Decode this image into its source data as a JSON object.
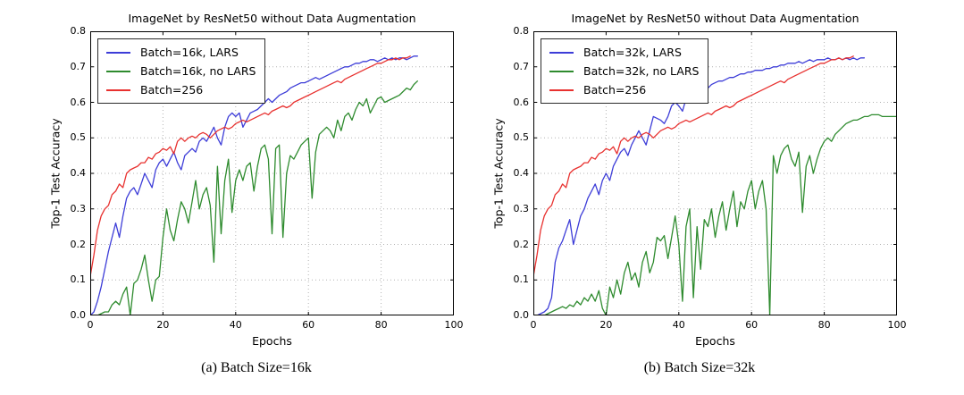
{
  "chart_data": [
    {
      "id": "a",
      "type": "line",
      "title": "ImageNet by ResNet50 without Data Augmentation",
      "caption": "(a) Batch Size=16k",
      "xlabel": "Epochs",
      "ylabel": "Top-1 Test Accuracy",
      "xlim": [
        0,
        100
      ],
      "ylim": [
        0.0,
        0.8
      ],
      "xticks": [
        0,
        20,
        40,
        60,
        80,
        100
      ],
      "yticks": [
        0.0,
        0.1,
        0.2,
        0.3,
        0.4,
        0.5,
        0.6,
        0.7,
        0.8
      ],
      "ytick_labels": [
        "0.0",
        "0.1",
        "0.2",
        "0.3",
        "0.4",
        "0.5",
        "0.6",
        "0.7",
        "0.8"
      ],
      "grid": "dotted",
      "grid_color": "#b3b3b3",
      "legend_position": "upper-left",
      "series": [
        {
          "name": "Batch=16k, LARS",
          "color": "#3d3dd8",
          "epochs_start": 0,
          "epochs_step": 1,
          "values": [
            0.0,
            0.01,
            0.04,
            0.08,
            0.13,
            0.18,
            0.22,
            0.26,
            0.22,
            0.28,
            0.33,
            0.35,
            0.36,
            0.34,
            0.37,
            0.4,
            0.38,
            0.36,
            0.41,
            0.43,
            0.44,
            0.42,
            0.44,
            0.46,
            0.43,
            0.41,
            0.45,
            0.46,
            0.47,
            0.46,
            0.49,
            0.5,
            0.49,
            0.51,
            0.53,
            0.5,
            0.48,
            0.53,
            0.56,
            0.57,
            0.56,
            0.57,
            0.53,
            0.55,
            0.57,
            0.575,
            0.58,
            0.59,
            0.6,
            0.61,
            0.6,
            0.61,
            0.62,
            0.625,
            0.63,
            0.64,
            0.645,
            0.65,
            0.655,
            0.655,
            0.66,
            0.665,
            0.67,
            0.665,
            0.67,
            0.675,
            0.68,
            0.685,
            0.69,
            0.695,
            0.7,
            0.7,
            0.705,
            0.71,
            0.71,
            0.715,
            0.715,
            0.72,
            0.72,
            0.715,
            0.72,
            0.725,
            0.72,
            0.725,
            0.72,
            0.725,
            0.725,
            0.72,
            0.725,
            0.73,
            0.73
          ]
        },
        {
          "name": "Batch=16k, no LARS",
          "color": "#2e8b2e",
          "epochs_start": 0,
          "epochs_step": 1,
          "values": [
            0.0,
            0.0,
            0.0,
            0.005,
            0.01,
            0.01,
            0.03,
            0.04,
            0.03,
            0.06,
            0.08,
            0.0,
            0.09,
            0.1,
            0.13,
            0.17,
            0.1,
            0.04,
            0.1,
            0.11,
            0.22,
            0.3,
            0.24,
            0.21,
            0.27,
            0.32,
            0.3,
            0.26,
            0.32,
            0.38,
            0.3,
            0.34,
            0.36,
            0.31,
            0.15,
            0.42,
            0.23,
            0.38,
            0.44,
            0.29,
            0.38,
            0.41,
            0.38,
            0.42,
            0.43,
            0.35,
            0.42,
            0.47,
            0.48,
            0.44,
            0.23,
            0.47,
            0.48,
            0.22,
            0.4,
            0.45,
            0.44,
            0.46,
            0.48,
            0.49,
            0.5,
            0.33,
            0.46,
            0.51,
            0.52,
            0.53,
            0.52,
            0.5,
            0.55,
            0.52,
            0.56,
            0.57,
            0.55,
            0.58,
            0.6,
            0.59,
            0.61,
            0.57,
            0.59,
            0.61,
            0.615,
            0.6,
            0.605,
            0.61,
            0.615,
            0.62,
            0.63,
            0.64,
            0.635,
            0.65,
            0.66
          ]
        },
        {
          "name": "Batch=256",
          "color": "#e8312f",
          "epochs_start": 0,
          "epochs_step": 1,
          "values": [
            0.11,
            0.17,
            0.24,
            0.28,
            0.3,
            0.31,
            0.34,
            0.35,
            0.37,
            0.36,
            0.4,
            0.41,
            0.415,
            0.42,
            0.43,
            0.43,
            0.445,
            0.44,
            0.455,
            0.46,
            0.47,
            0.465,
            0.475,
            0.455,
            0.49,
            0.5,
            0.49,
            0.5,
            0.505,
            0.5,
            0.51,
            0.515,
            0.51,
            0.5,
            0.51,
            0.52,
            0.525,
            0.53,
            0.525,
            0.53,
            0.54,
            0.545,
            0.55,
            0.545,
            0.55,
            0.555,
            0.56,
            0.565,
            0.57,
            0.565,
            0.575,
            0.58,
            0.585,
            0.59,
            0.585,
            0.59,
            0.6,
            0.605,
            0.61,
            0.615,
            0.62,
            0.625,
            0.63,
            0.635,
            0.64,
            0.645,
            0.65,
            0.655,
            0.66,
            0.655,
            0.665,
            0.67,
            0.675,
            0.68,
            0.685,
            0.69,
            0.695,
            0.7,
            0.705,
            0.71,
            0.71,
            0.715,
            0.72,
            0.72,
            0.725,
            0.72,
            0.725,
            0.725,
            0.73
          ]
        }
      ]
    },
    {
      "id": "b",
      "type": "line",
      "title": "ImageNet by ResNet50 without Data Augmentation",
      "caption": "(b) Batch Size=32k",
      "xlabel": "Epochs",
      "ylabel": "Top-1 Test Accuracy",
      "xlim": [
        0,
        100
      ],
      "ylim": [
        0.0,
        0.8
      ],
      "xticks": [
        0,
        20,
        40,
        60,
        80,
        100
      ],
      "yticks": [
        0.0,
        0.1,
        0.2,
        0.3,
        0.4,
        0.5,
        0.6,
        0.7,
        0.8
      ],
      "ytick_labels": [
        "0.0",
        "0.1",
        "0.2",
        "0.3",
        "0.4",
        "0.5",
        "0.6",
        "0.7",
        "0.8"
      ],
      "grid": "dotted",
      "grid_color": "#b3b3b3",
      "legend_position": "upper-left",
      "series": [
        {
          "name": "Batch=32k, LARS",
          "color": "#3d3dd8",
          "epochs_start": 0,
          "epochs_step": 1,
          "values": [
            0.0,
            0.0,
            0.005,
            0.01,
            0.02,
            0.05,
            0.15,
            0.19,
            0.21,
            0.24,
            0.27,
            0.2,
            0.24,
            0.28,
            0.3,
            0.33,
            0.35,
            0.37,
            0.34,
            0.38,
            0.4,
            0.38,
            0.42,
            0.44,
            0.46,
            0.47,
            0.45,
            0.48,
            0.5,
            0.52,
            0.5,
            0.48,
            0.52,
            0.56,
            0.555,
            0.55,
            0.54,
            0.56,
            0.59,
            0.6,
            0.59,
            0.575,
            0.61,
            0.62,
            0.625,
            0.63,
            0.64,
            0.645,
            0.64,
            0.65,
            0.655,
            0.66,
            0.66,
            0.665,
            0.67,
            0.67,
            0.675,
            0.68,
            0.68,
            0.685,
            0.685,
            0.69,
            0.69,
            0.69,
            0.695,
            0.695,
            0.7,
            0.7,
            0.705,
            0.705,
            0.71,
            0.71,
            0.71,
            0.715,
            0.71,
            0.715,
            0.72,
            0.715,
            0.72,
            0.72,
            0.72,
            0.725,
            0.72,
            0.72,
            0.725,
            0.72,
            0.725,
            0.72,
            0.725,
            0.72,
            0.725,
            0.725
          ]
        },
        {
          "name": "Batch=32k, no LARS",
          "color": "#2e8b2e",
          "epochs_start": 0,
          "epochs_step": 1,
          "values": [
            0.0,
            0.0,
            0.0,
            0.0,
            0.005,
            0.01,
            0.015,
            0.02,
            0.025,
            0.02,
            0.03,
            0.025,
            0.04,
            0.03,
            0.05,
            0.04,
            0.06,
            0.04,
            0.07,
            0.02,
            0.0,
            0.08,
            0.05,
            0.1,
            0.06,
            0.12,
            0.15,
            0.1,
            0.12,
            0.08,
            0.15,
            0.18,
            0.12,
            0.15,
            0.22,
            0.21,
            0.225,
            0.16,
            0.22,
            0.28,
            0.2,
            0.04,
            0.25,
            0.3,
            0.05,
            0.25,
            0.13,
            0.27,
            0.25,
            0.3,
            0.22,
            0.28,
            0.32,
            0.24,
            0.3,
            0.35,
            0.25,
            0.32,
            0.3,
            0.35,
            0.38,
            0.3,
            0.35,
            0.38,
            0.3,
            0.0,
            0.45,
            0.4,
            0.45,
            0.47,
            0.48,
            0.44,
            0.42,
            0.46,
            0.29,
            0.42,
            0.45,
            0.4,
            0.44,
            0.47,
            0.49,
            0.5,
            0.49,
            0.51,
            0.52,
            0.53,
            0.54,
            0.545,
            0.55,
            0.55,
            0.555,
            0.56,
            0.56,
            0.565,
            0.565,
            0.565,
            0.56,
            0.56,
            0.56,
            0.56,
            0.56
          ]
        },
        {
          "name": "Batch=256",
          "color": "#e8312f",
          "epochs_start": 0,
          "epochs_step": 1,
          "values": [
            0.11,
            0.17,
            0.24,
            0.28,
            0.3,
            0.31,
            0.34,
            0.35,
            0.37,
            0.36,
            0.4,
            0.41,
            0.415,
            0.42,
            0.43,
            0.43,
            0.445,
            0.44,
            0.455,
            0.46,
            0.47,
            0.465,
            0.475,
            0.455,
            0.49,
            0.5,
            0.49,
            0.5,
            0.505,
            0.5,
            0.51,
            0.515,
            0.51,
            0.5,
            0.51,
            0.52,
            0.525,
            0.53,
            0.525,
            0.53,
            0.54,
            0.545,
            0.55,
            0.545,
            0.55,
            0.555,
            0.56,
            0.565,
            0.57,
            0.565,
            0.575,
            0.58,
            0.585,
            0.59,
            0.585,
            0.59,
            0.6,
            0.605,
            0.61,
            0.615,
            0.62,
            0.625,
            0.63,
            0.635,
            0.64,
            0.645,
            0.65,
            0.655,
            0.66,
            0.655,
            0.665,
            0.67,
            0.675,
            0.68,
            0.685,
            0.69,
            0.695,
            0.7,
            0.705,
            0.71,
            0.71,
            0.715,
            0.72,
            0.72,
            0.725,
            0.72,
            0.725,
            0.725,
            0.73
          ]
        }
      ]
    }
  ]
}
